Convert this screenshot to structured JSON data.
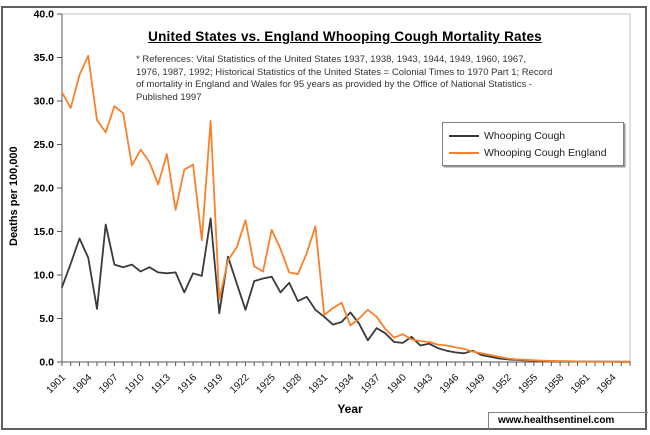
{
  "chart": {
    "reference_lines": [
      "* References: Vital Statistics of the United States 1937, 1938, 1943, 1944, 1949, 1960, 1967,",
      "1976, 1987, 1992; Historical Statistics of the United States = Colonial Times to 1970 Part 1; Record",
      "of mortality in England and Wales for 95 years as provided by the Office of National Statistics -",
      "Published 1997"
    ],
    "watermark": "www.healthsentinel.com"
  },
  "chart_data": {
    "type": "line",
    "title": "United States vs. England Whooping Cough Mortality Rates",
    "xlabel": "Year",
    "ylabel": "Deaths per 100,000",
    "ylim": [
      0,
      40
    ],
    "y_ticks": [
      0,
      5,
      10,
      15,
      20,
      25,
      30,
      35,
      40
    ],
    "y_tick_labels": [
      "0.0",
      "5.0",
      "10.0",
      "15.0",
      "20.0",
      "25.0",
      "30.0",
      "35.0",
      "40.0"
    ],
    "x": [
      1901,
      1902,
      1903,
      1904,
      1905,
      1906,
      1907,
      1908,
      1909,
      1910,
      1911,
      1912,
      1913,
      1914,
      1915,
      1916,
      1917,
      1918,
      1919,
      1920,
      1921,
      1922,
      1923,
      1924,
      1925,
      1926,
      1927,
      1928,
      1929,
      1930,
      1931,
      1932,
      1933,
      1934,
      1935,
      1936,
      1937,
      1938,
      1939,
      1940,
      1941,
      1942,
      1943,
      1944,
      1945,
      1946,
      1947,
      1948,
      1949,
      1950,
      1951,
      1952,
      1953,
      1954,
      1955,
      1956,
      1957,
      1958,
      1959,
      1960,
      1961,
      1962,
      1963,
      1964,
      1965,
      1966
    ],
    "x_tick_labels": [
      1901,
      1904,
      1907,
      1910,
      1913,
      1916,
      1919,
      1922,
      1925,
      1928,
      1931,
      1934,
      1937,
      1940,
      1943,
      1946,
      1949,
      1952,
      1955,
      1958,
      1961,
      1964
    ],
    "grid": false,
    "legend_position": "upper right",
    "series": [
      {
        "name": "Whooping Cough",
        "color": "#3a3a3a",
        "values": [
          8.6,
          11.3,
          14.2,
          12.0,
          6.1,
          15.8,
          11.2,
          10.9,
          11.2,
          10.4,
          10.9,
          10.3,
          10.2,
          10.3,
          8.0,
          10.2,
          9.9,
          16.5,
          5.6,
          12.1,
          9.0,
          6.0,
          9.3,
          9.6,
          9.8,
          8.0,
          9.1,
          7.0,
          7.5,
          6.0,
          5.2,
          4.3,
          4.6,
          5.7,
          4.4,
          2.5,
          3.9,
          3.3,
          2.3,
          2.2,
          2.9,
          1.9,
          2.1,
          1.6,
          1.3,
          1.1,
          1.0,
          1.3,
          0.8,
          0.6,
          0.4,
          0.3,
          0.25,
          0.2,
          0.15,
          0.12,
          0.1,
          0.08,
          0.07,
          0.06,
          0.05,
          0.04,
          0.03,
          0.03,
          0.02,
          0.02
        ]
      },
      {
        "name": "Whooping Cough England",
        "color": "#f8812c",
        "values": [
          31.0,
          29.2,
          33.0,
          35.2,
          27.8,
          26.4,
          29.4,
          28.6,
          22.6,
          24.4,
          23.0,
          20.4,
          23.9,
          17.5,
          22.1,
          22.7,
          14.0,
          27.7,
          7.2,
          11.7,
          13.2,
          16.3,
          11.0,
          10.4,
          15.2,
          13.0,
          10.3,
          10.1,
          12.5,
          15.6,
          5.4,
          6.2,
          6.8,
          4.2,
          5.0,
          6.0,
          5.2,
          3.8,
          2.8,
          3.2,
          2.6,
          2.4,
          2.3,
          2.0,
          1.9,
          1.7,
          1.5,
          1.2,
          1.0,
          0.8,
          0.6,
          0.4,
          0.3,
          0.25,
          0.2,
          0.15,
          0.12,
          0.1,
          0.09,
          0.07,
          0.06,
          0.05,
          0.04,
          0.03,
          0.03,
          0.02
        ]
      }
    ]
  }
}
